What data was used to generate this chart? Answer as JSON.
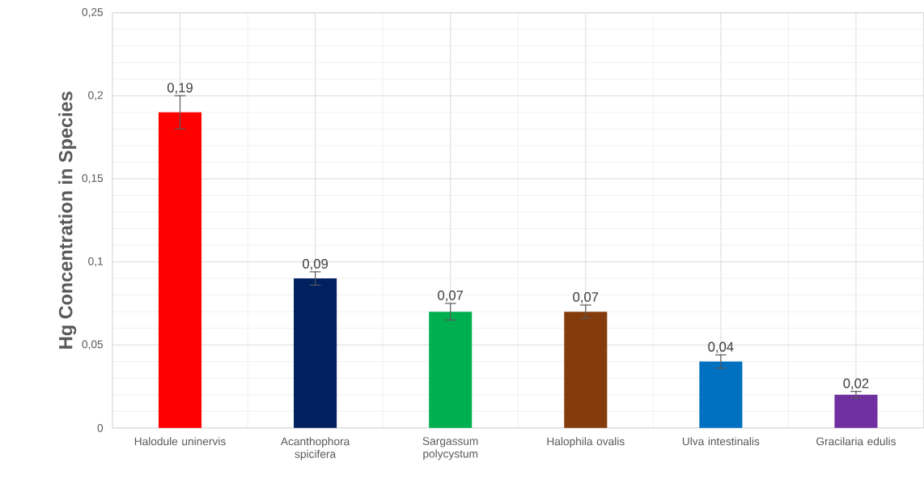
{
  "chart_data": {
    "type": "bar",
    "ylabel": "Hg Concentration in Species",
    "categories": [
      "Halodule uninervis",
      "Acanthophora spicifera",
      "Sargassum polycystum",
      "Halophila ovalis",
      "Ulva intestinalis",
      "Gracilaria edulis"
    ],
    "values": [
      0.19,
      0.09,
      0.07,
      0.07,
      0.04,
      0.02
    ],
    "colors": [
      "#ff0000",
      "#002060",
      "#00b050",
      "#843c0c",
      "#0070c0",
      "#7030a0"
    ],
    "errors": [
      0.01,
      0.004,
      0.005,
      0.004,
      0.004,
      0.002
    ],
    "value_labels": [
      "0,19",
      "0,09",
      "0,07",
      "0,07",
      "0,04",
      "0,02"
    ],
    "ylim": [
      0,
      0.25
    ],
    "yticks": [
      {
        "value": 0,
        "label": "0"
      },
      {
        "value": 0.05,
        "label": "0,05"
      },
      {
        "value": 0.1,
        "label": "0,1"
      },
      {
        "value": 0.15,
        "label": "0,15"
      },
      {
        "value": 0.2,
        "label": "0,2"
      },
      {
        "value": 0.25,
        "label": "0,25"
      }
    ],
    "grid": true
  }
}
